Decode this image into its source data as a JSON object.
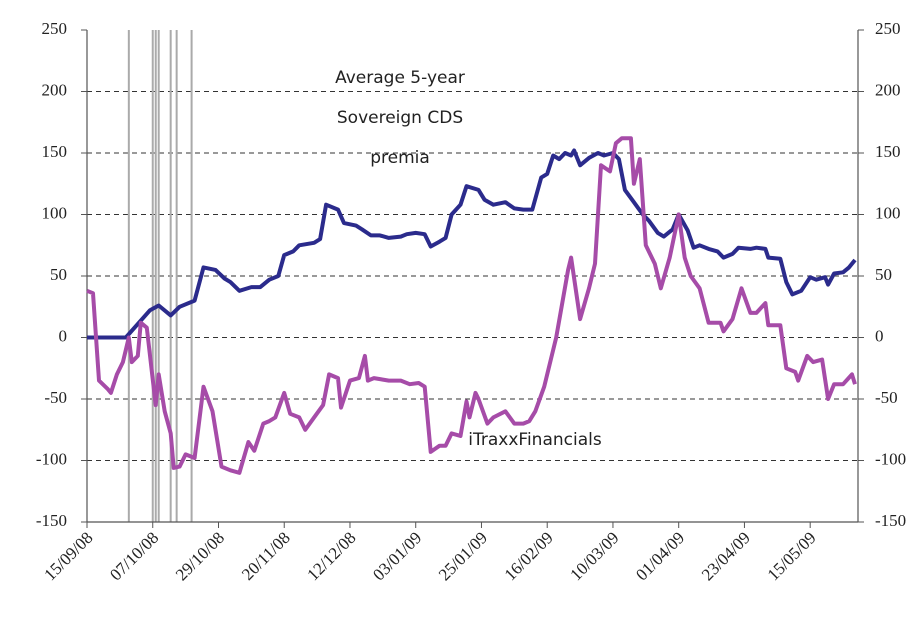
{
  "chart_data": {
    "type": "line",
    "xlim": [
      "15/09/08",
      "31/05/09"
    ],
    "xticks": [
      "15/09/08",
      "07/10/08",
      "29/10/08",
      "20/11/08",
      "12/12/08",
      "03/01/09",
      "25/01/09",
      "16/02/09",
      "10/03/09",
      "01/04/09",
      "23/04/09",
      "15/05/09"
    ],
    "ylim": [
      -150,
      250
    ],
    "yticks": [
      -150,
      -100,
      -50,
      0,
      50,
      100,
      150,
      200,
      250
    ],
    "y2lim": [
      -150,
      250
    ],
    "y2ticks": [
      -150,
      -100,
      -50,
      0,
      50,
      100,
      150,
      200,
      250
    ],
    "grid": true,
    "event_lines": [
      "29/09/08",
      "07/10/08",
      "08/10/08",
      "09/10/08",
      "13/10/08",
      "15/10/08",
      "20/10/08"
    ],
    "event_color": "#aaaaaa",
    "series": [
      {
        "label_lines": [
          "Average 5-year",
          "Sovereign CDS",
          "premia"
        ],
        "color": "#2b2b8c",
        "axis": "y",
        "x": [
          "15/09/08",
          "28/09/08",
          "06/10/08",
          "09/10/08",
          "13/10/08",
          "16/10/08",
          "21/10/08",
          "24/10/08",
          "28/10/08",
          "31/10/08",
          "02/11/08",
          "05/11/08",
          "09/11/08",
          "12/11/08",
          "15/11/08",
          "18/11/08",
          "20/11/08",
          "23/11/08",
          "25/11/08",
          "30/11/08",
          "02/12/08",
          "04/12/08",
          "08/12/08",
          "10/12/08",
          "14/12/08",
          "16/12/08",
          "19/12/08",
          "22/12/08",
          "25/12/08",
          "29/12/08",
          "31/12/08",
          "03/01/09",
          "06/01/09",
          "08/01/09",
          "11/01/09",
          "13/01/09",
          "15/01/09",
          "18/01/09",
          "20/01/09",
          "24/01/09",
          "26/01/09",
          "29/01/09",
          "02/02/09",
          "05/02/09",
          "08/02/09",
          "11/02/09",
          "14/02/09",
          "16/02/09",
          "18/02/09",
          "20/02/09",
          "22/02/09",
          "24/02/09",
          "25/02/09",
          "27/02/09",
          "02/03/09",
          "05/03/09",
          "07/03/09",
          "10/03/09",
          "12/03/09",
          "14/03/09",
          "17/03/09",
          "20/03/09",
          "22/03/09",
          "25/03/09",
          "27/03/09",
          "30/03/09",
          "01/04/09",
          "04/04/09",
          "06/04/09",
          "08/04/09",
          "11/04/09",
          "14/04/09",
          "16/04/09",
          "19/04/09",
          "21/04/09",
          "25/04/09",
          "27/04/09",
          "30/04/09",
          "01/05/09",
          "05/05/09",
          "07/05/09",
          "09/05/09",
          "12/05/09",
          "15/05/09",
          "17/05/09",
          "20/05/09",
          "21/05/09",
          "23/05/09",
          "26/05/09",
          "28/05/09",
          "30/05/09"
        ],
        "values": [
          0,
          0,
          22,
          26,
          18,
          25,
          30,
          57,
          55,
          48,
          45,
          38,
          41,
          41,
          47,
          50,
          67,
          70,
          75,
          77,
          80,
          108,
          104,
          93,
          91,
          88,
          83,
          83,
          81,
          82,
          84,
          85,
          84,
          74,
          78,
          81,
          100,
          108,
          123,
          120,
          112,
          108,
          110,
          105,
          104,
          104,
          130,
          133,
          148,
          145,
          150,
          148,
          152,
          140,
          146,
          150,
          148,
          150,
          145,
          120,
          110,
          100,
          95,
          85,
          82,
          88,
          100,
          87,
          73,
          75,
          72,
          70,
          65,
          68,
          73,
          72,
          73,
          72,
          65,
          64,
          45,
          35,
          38,
          49,
          47,
          49,
          43,
          52,
          53,
          57,
          63
        ]
      },
      {
        "label_lines": [
          "iTraxxFinancials"
        ],
        "color": "#a64ca8",
        "axis": "y2",
        "x": [
          "15/09/08",
          "17/09/08",
          "19/09/08",
          "22/09/08",
          "23/09/08",
          "25/09/08",
          "27/09/08",
          "29/09/08",
          "30/09/08",
          "02/10/08",
          "03/10/08",
          "05/10/08",
          "08/10/08",
          "09/10/08",
          "11/10/08",
          "13/10/08",
          "14/10/08",
          "16/10/08",
          "18/10/08",
          "21/10/08",
          "24/10/08",
          "27/10/08",
          "30/10/08",
          "02/11/08",
          "05/11/08",
          "08/11/08",
          "10/11/08",
          "13/11/08",
          "15/11/08",
          "17/11/08",
          "20/11/08",
          "22/11/08",
          "25/11/08",
          "27/11/08",
          "30/11/08",
          "03/12/08",
          "05/12/08",
          "08/12/08",
          "09/12/08",
          "12/12/08",
          "15/12/08",
          "17/12/08",
          "18/12/08",
          "20/12/08",
          "25/12/08",
          "29/12/08",
          "01/01/09",
          "04/01/09",
          "06/01/09",
          "08/01/09",
          "11/01/09",
          "13/01/09",
          "15/01/09",
          "18/01/09",
          "20/01/09",
          "21/01/09",
          "23/01/09",
          "24/01/09",
          "27/01/09",
          "29/01/09",
          "02/02/09",
          "05/02/09",
          "08/02/09",
          "10/02/09",
          "12/02/09",
          "15/02/09",
          "18/02/09",
          "19/02/09",
          "23/02/09",
          "24/02/09",
          "27/02/09",
          "02/03/09",
          "04/03/09",
          "06/03/09",
          "09/03/09",
          "11/03/09",
          "13/03/09",
          "16/03/09",
          "17/03/09",
          "19/03/09",
          "21/03/09",
          "24/03/09",
          "26/03/09",
          "29/03/09",
          "01/04/09",
          "03/04/09",
          "05/04/09",
          "08/04/09",
          "11/04/09",
          "15/04/09",
          "16/04/09",
          "19/04/09",
          "22/04/09",
          "25/04/09",
          "27/04/09",
          "30/04/09",
          "01/05/09",
          "05/05/09",
          "07/05/09",
          "10/05/09",
          "11/05/09",
          "14/05/09",
          "16/05/09",
          "19/05/09",
          "21/05/09",
          "23/05/09",
          "26/05/09",
          "29/05/09",
          "30/05/09"
        ],
        "values": [
          38,
          36,
          -35,
          -42,
          -45,
          -30,
          -20,
          0,
          -20,
          -15,
          12,
          8,
          -55,
          -30,
          -60,
          -78,
          -106,
          -105,
          -95,
          -98,
          -40,
          -60,
          -105,
          -108,
          -110,
          -85,
          -92,
          -70,
          -68,
          -65,
          -45,
          -62,
          -65,
          -75,
          -65,
          -55,
          -30,
          -33,
          -57,
          -35,
          -33,
          -15,
          -35,
          -33,
          -35,
          -35,
          -38,
          -37,
          -40,
          -93,
          -88,
          -88,
          -78,
          -80,
          -52,
          -65,
          -45,
          -50,
          -70,
          -65,
          -60,
          -70,
          -70,
          -68,
          -60,
          -40,
          -10,
          0,
          55,
          65,
          15,
          40,
          60,
          140,
          135,
          158,
          162,
          162,
          125,
          145,
          75,
          60,
          40,
          65,
          100,
          65,
          50,
          40,
          12,
          12,
          5,
          15,
          40,
          20,
          20,
          28,
          10,
          10,
          -25,
          -28,
          -35,
          -15,
          -20,
          -18,
          -50,
          -38,
          -38,
          -30,
          -38
        ]
      }
    ]
  }
}
